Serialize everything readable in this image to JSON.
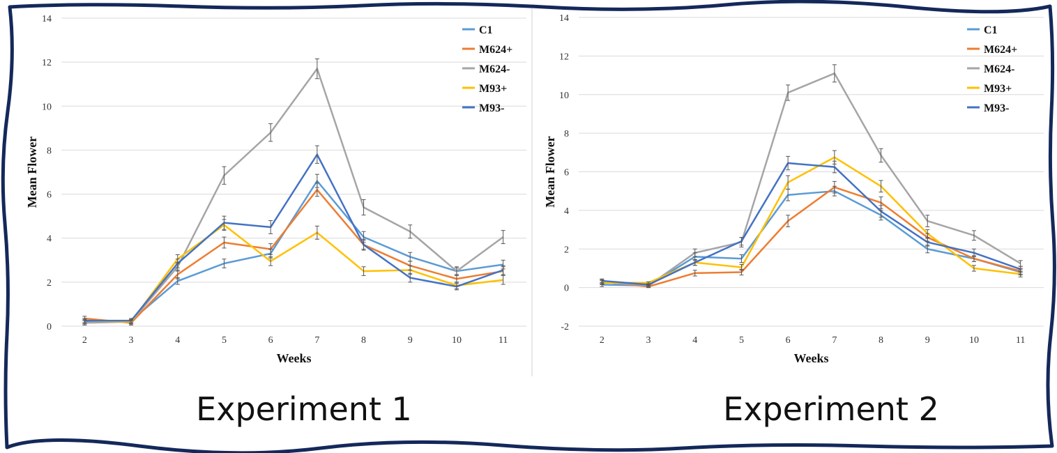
{
  "frame": {
    "border_color": "#14285a",
    "divider_color": "#d0d0d0"
  },
  "chart_data": [
    {
      "type": "line",
      "title": "",
      "xlabel": "Weeks",
      "ylabel": "Mean Flower",
      "categories": [
        "2",
        "3",
        "4",
        "5",
        "6",
        "7",
        "8",
        "9",
        "10",
        "11"
      ],
      "ylim": [
        0,
        14
      ],
      "yticks": [
        0,
        2,
        4,
        6,
        8,
        10,
        12,
        14
      ],
      "grid": true,
      "legend": "top-right",
      "caption": "Experiment 1",
      "series": [
        {
          "name": "C1",
          "color": "#5b9bd5",
          "values": [
            0.2,
            0.25,
            2.05,
            2.85,
            3.3,
            6.6,
            4.05,
            3.15,
            2.5,
            2.8
          ],
          "errors": [
            0.1,
            0.1,
            0.15,
            0.2,
            0.2,
            0.3,
            0.25,
            0.2,
            0.15,
            0.2
          ]
        },
        {
          "name": "M624+",
          "color": "#ed7d31",
          "values": [
            0.35,
            0.15,
            2.35,
            3.8,
            3.5,
            6.2,
            3.7,
            2.75,
            2.15,
            2.5
          ],
          "errors": [
            0.1,
            0.1,
            0.2,
            0.25,
            0.25,
            0.3,
            0.2,
            0.2,
            0.15,
            0.2
          ]
        },
        {
          "name": "M624-",
          "color": "#a5a5a5",
          "values": [
            0.15,
            0.2,
            2.7,
            6.85,
            8.8,
            11.7,
            5.4,
            4.3,
            2.5,
            4.05
          ],
          "errors": [
            0.1,
            0.1,
            0.2,
            0.4,
            0.4,
            0.45,
            0.35,
            0.3,
            0.2,
            0.3
          ]
        },
        {
          "name": "M93+",
          "color": "#ffc000",
          "values": [
            0.25,
            0.2,
            3.05,
            4.6,
            2.95,
            4.25,
            2.5,
            2.55,
            1.85,
            2.1
          ],
          "errors": [
            0.1,
            0.1,
            0.2,
            0.25,
            0.2,
            0.3,
            0.2,
            0.2,
            0.15,
            0.2
          ]
        },
        {
          "name": "M93-",
          "color": "#4472c4",
          "values": [
            0.25,
            0.25,
            2.85,
            4.7,
            4.5,
            7.8,
            3.7,
            2.2,
            1.8,
            2.55
          ],
          "errors": [
            0.1,
            0.1,
            0.2,
            0.3,
            0.3,
            0.4,
            0.25,
            0.2,
            0.15,
            0.2
          ]
        }
      ]
    },
    {
      "type": "line",
      "title": "",
      "xlabel": "Weeks",
      "ylabel": "Mean Flower",
      "categories": [
        "2",
        "3",
        "4",
        "5",
        "6",
        "7",
        "8",
        "9",
        "10",
        "11"
      ],
      "ylim": [
        -2,
        14
      ],
      "yticks": [
        -2,
        0,
        2,
        4,
        6,
        8,
        10,
        12,
        14
      ],
      "grid": true,
      "legend": "top-right",
      "caption": "Experiment 2",
      "series": [
        {
          "name": "C1",
          "color": "#5b9bd5",
          "values": [
            0.15,
            0.1,
            1.6,
            1.5,
            4.8,
            5.0,
            3.75,
            2.0,
            1.5,
            0.8
          ],
          "errors": [
            0.1,
            0.1,
            0.2,
            0.2,
            0.3,
            0.25,
            0.25,
            0.2,
            0.15,
            0.15
          ]
        },
        {
          "name": "M624+",
          "color": "#ed7d31",
          "values": [
            0.3,
            0.05,
            0.75,
            0.8,
            3.45,
            5.2,
            4.4,
            2.6,
            1.5,
            0.85
          ],
          "errors": [
            0.1,
            0.05,
            0.15,
            0.15,
            0.3,
            0.3,
            0.3,
            0.2,
            0.15,
            0.15
          ]
        },
        {
          "name": "M624-",
          "color": "#a5a5a5",
          "values": [
            0.3,
            0.1,
            1.8,
            2.35,
            10.1,
            11.1,
            6.85,
            3.45,
            2.7,
            1.25
          ],
          "errors": [
            0.1,
            0.05,
            0.2,
            0.25,
            0.4,
            0.45,
            0.35,
            0.3,
            0.25,
            0.15
          ]
        },
        {
          "name": "M93+",
          "color": "#ffc000",
          "values": [
            0.25,
            0.25,
            1.3,
            1.05,
            5.45,
            6.75,
            5.25,
            2.8,
            1.0,
            0.7
          ],
          "errors": [
            0.1,
            0.05,
            0.15,
            0.15,
            0.35,
            0.35,
            0.3,
            0.2,
            0.15,
            0.15
          ]
        },
        {
          "name": "M93-",
          "color": "#4472c4",
          "values": [
            0.35,
            0.15,
            1.3,
            2.4,
            6.45,
            6.25,
            3.95,
            2.35,
            1.8,
            0.95
          ],
          "errors": [
            0.1,
            0.05,
            0.15,
            0.2,
            0.35,
            0.3,
            0.3,
            0.2,
            0.2,
            0.15
          ]
        }
      ]
    }
  ]
}
